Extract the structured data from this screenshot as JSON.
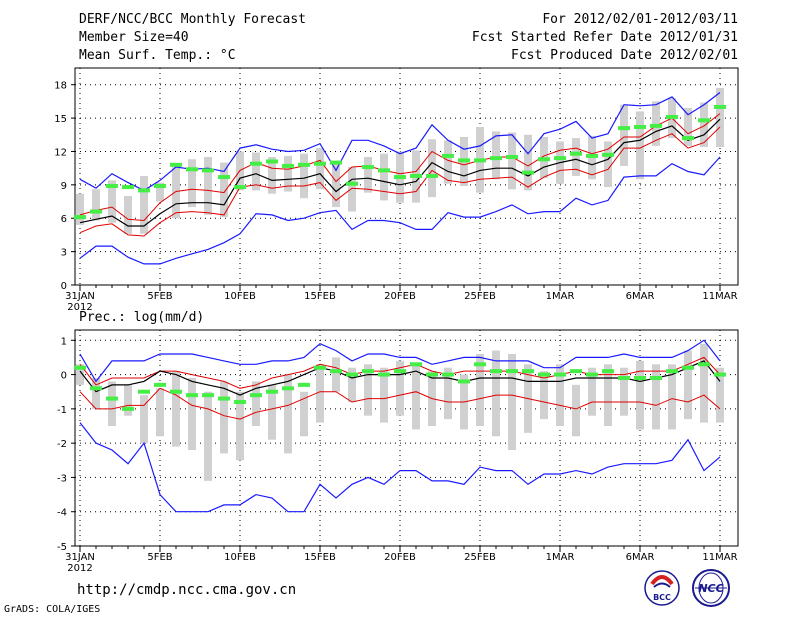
{
  "header": {
    "title": "DERF/NCC/BCC Monthly Forecast",
    "member_size": "Member Size=40",
    "variable": "Mean Surf. Temp.: °C",
    "period": "For 2012/02/01-2012/03/11",
    "started": "Fcst Started Refer Date 2012/01/31",
    "produced": "Fcst Produced Date 2012/02/01"
  },
  "footer": {
    "url": "http://cmdp.ncc.cma.gov.cn",
    "credit": "GrADS: COLA/IGES",
    "logo_bcc": "BCC",
    "logo_ncc": "NCC"
  },
  "colors": {
    "max_min": "#1a1aff",
    "spread": "#e00000",
    "mean": "#000000",
    "box": "#d0d0d0",
    "climo": "#44ee44"
  },
  "chart_data": [
    {
      "type": "line",
      "title": "Mean Surf. Temp.: °C",
      "xlabel": "",
      "ylabel": "°C",
      "ylim": [
        0,
        19.5
      ],
      "yticks": [
        0,
        3,
        6,
        9,
        12,
        15,
        18
      ],
      "x_days": [
        0,
        1,
        2,
        3,
        4,
        5,
        6,
        7,
        8,
        9,
        10,
        11,
        12,
        13,
        14,
        15,
        16,
        17,
        18,
        19,
        20,
        21,
        22,
        23,
        24,
        25,
        26,
        27,
        28,
        29,
        30,
        31,
        32,
        33,
        34,
        35,
        36,
        37,
        38,
        39,
        40
      ],
      "xtick_days": [
        0,
        5,
        10,
        15,
        20,
        25,
        30,
        35,
        40
      ],
      "xtick_labels": [
        "31JAN",
        "5FEB",
        "10FEB",
        "15FEB",
        "20FEB",
        "25FEB",
        "1MAR",
        "6MAR",
        "11MAR"
      ],
      "year_label": "2012",
      "grid": true,
      "series": [
        {
          "name": "ensemble max",
          "values": [
            9.5,
            8.7,
            10,
            9.2,
            8.5,
            9.4,
            10.6,
            10.4,
            10.5,
            10.2,
            12.3,
            12.6,
            12.2,
            12,
            12.1,
            12.7,
            10.3,
            13,
            13,
            12.5,
            11.8,
            12.3,
            14.4,
            13,
            12.2,
            12.5,
            13.4,
            13.5,
            11.8,
            13.6,
            14,
            14.7,
            13.2,
            13.6,
            16.2,
            16.1,
            16.2,
            16.9,
            15.3,
            16.2,
            17.3
          ]
        },
        {
          "name": "upper spread",
          "values": [
            6.3,
            6.7,
            7,
            5.9,
            5.8,
            7.4,
            8.4,
            8.6,
            8.5,
            8.3,
            10.3,
            11,
            10.5,
            10.4,
            10.7,
            11.2,
            9.3,
            10.6,
            10.7,
            10.3,
            10,
            10.2,
            12,
            11.2,
            10.8,
            11.2,
            11.5,
            11.5,
            10.7,
            11.6,
            12.1,
            12.3,
            11.8,
            12.2,
            13.3,
            13.3,
            14.3,
            15,
            13.6,
            14.3,
            15.4
          ]
        },
        {
          "name": "ensemble mean",
          "values": [
            5.6,
            5.9,
            6.2,
            5.3,
            5.3,
            6.4,
            7.3,
            7.4,
            7.4,
            7.2,
            9.6,
            10,
            9.4,
            9.5,
            9.6,
            10,
            8.4,
            9.5,
            9.6,
            9.3,
            9,
            9.3,
            11,
            10.2,
            9.8,
            10.3,
            10.5,
            10.5,
            9.8,
            10.6,
            11,
            11.3,
            10.8,
            11.3,
            12.8,
            13,
            13.8,
            14.3,
            13,
            13.5,
            14.9
          ]
        },
        {
          "name": "lower spread",
          "values": [
            4.7,
            5.3,
            5.5,
            4.5,
            4.4,
            5.6,
            6.5,
            6.6,
            6.5,
            6.3,
            8.8,
            9,
            8.7,
            8.9,
            8.9,
            9.2,
            7.6,
            8.7,
            8.6,
            8.4,
            8.2,
            8.4,
            10.3,
            9.4,
            9.2,
            9.5,
            9.6,
            9.7,
            8.8,
            9.7,
            10.3,
            10.4,
            9.9,
            10.4,
            12.3,
            12.3,
            13,
            13.6,
            12.3,
            12.8,
            14.2
          ]
        },
        {
          "name": "ensemble min",
          "values": [
            2.4,
            3.5,
            3.5,
            2.5,
            1.9,
            1.9,
            2.4,
            2.8,
            3.2,
            3.8,
            4.6,
            6.4,
            6.3,
            5.8,
            6,
            6.5,
            6.7,
            5,
            5.8,
            5.8,
            5.6,
            5,
            5,
            6.5,
            6.1,
            6.1,
            6.6,
            7.2,
            6.4,
            6.6,
            6.6,
            7.8,
            7.2,
            7.6,
            9.7,
            9.8,
            9.8,
            10.9,
            10.2,
            9.9,
            11.5
          ]
        },
        {
          "name": "climatology",
          "values": [
            6.1,
            6.6,
            8.9,
            8.8,
            8.5,
            8.9,
            10.8,
            10.4,
            10.3,
            9.7,
            8.8,
            10.9,
            11.1,
            10.7,
            10.8,
            10.9,
            11,
            9.1,
            10.6,
            10.3,
            9.7,
            9.8,
            9.8,
            11.6,
            11.2,
            11.2,
            11.4,
            11.5,
            10.1,
            11.3,
            11.4,
            11.8,
            11.6,
            11.7,
            14.1,
            14.2,
            14.3,
            15.1,
            13.2,
            14.8,
            16
          ]
        }
      ],
      "boxes": [
        [
          5.4,
          8.2
        ],
        [
          5.8,
          8.6
        ],
        [
          5.6,
          9.4
        ],
        [
          4.6,
          8
        ],
        [
          4.6,
          9.8
        ],
        [
          7.5,
          9.2
        ],
        [
          6,
          10.8
        ],
        [
          7,
          11.3
        ],
        [
          6.3,
          11.5
        ],
        [
          6.1,
          11
        ],
        [
          8.5,
          12
        ],
        [
          8.5,
          11.9
        ],
        [
          8.2,
          11.5
        ],
        [
          8.4,
          11.6
        ],
        [
          7.8,
          11.8
        ],
        [
          8.6,
          12.3
        ],
        [
          7,
          11
        ],
        [
          6.6,
          10.6
        ],
        [
          8.3,
          11.5
        ],
        [
          7.6,
          11.8
        ],
        [
          7.4,
          12
        ],
        [
          7.4,
          12.1
        ],
        [
          7.9,
          13.1
        ],
        [
          9.1,
          13
        ],
        [
          8.9,
          13.3
        ],
        [
          8.3,
          14.2
        ],
        [
          9.5,
          13.8
        ],
        [
          8.6,
          13.7
        ],
        [
          8.5,
          13.5
        ],
        [
          9.6,
          13.3
        ],
        [
          9.1,
          12.9
        ],
        [
          9.8,
          13.2
        ],
        [
          9.5,
          13.4
        ],
        [
          8.8,
          12.9
        ],
        [
          10.7,
          16.2
        ],
        [
          9.5,
          15.6
        ],
        [
          12.5,
          16.5
        ],
        [
          13.2,
          16.8
        ],
        [
          12.5,
          15.9
        ],
        [
          12.4,
          16.4
        ],
        [
          12.4,
          17.7
        ]
      ]
    },
    {
      "type": "line",
      "title": "Prec.: log(mm/d)",
      "xlabel": "",
      "ylabel": "log(mm/d)",
      "ylim": [
        -5,
        1.3
      ],
      "yticks": [
        -5,
        -4,
        -3,
        -2,
        -1,
        0,
        1
      ],
      "x_days": [
        0,
        1,
        2,
        3,
        4,
        5,
        6,
        7,
        8,
        9,
        10,
        11,
        12,
        13,
        14,
        15,
        16,
        17,
        18,
        19,
        20,
        21,
        22,
        23,
        24,
        25,
        26,
        27,
        28,
        29,
        30,
        31,
        32,
        33,
        34,
        35,
        36,
        37,
        38,
        39,
        40
      ],
      "xtick_days": [
        0,
        5,
        10,
        15,
        20,
        25,
        30,
        35,
        40
      ],
      "xtick_labels": [
        "31JAN",
        "5FEB",
        "10FEB",
        "15FEB",
        "20FEB",
        "25FEB",
        "1MAR",
        "6MAR",
        "11MAR"
      ],
      "year_label": "2012",
      "grid": true,
      "series": [
        {
          "name": "ensemble max",
          "values": [
            0.6,
            -0.2,
            0.4,
            0.4,
            0.4,
            0.6,
            0.6,
            0.6,
            0.5,
            0.4,
            0.3,
            0.3,
            0.4,
            0.4,
            0.5,
            0.9,
            0.7,
            0.4,
            0.6,
            0.6,
            0.5,
            0.5,
            0.3,
            0.4,
            0.5,
            0.5,
            0.4,
            0.4,
            0.4,
            0.2,
            0.2,
            0.5,
            0.5,
            0.5,
            0.6,
            0.5,
            0.5,
            0.5,
            0.7,
            1,
            0.4
          ]
        },
        {
          "name": "upper spread",
          "values": [
            0.3,
            -0.3,
            -0.1,
            -0.1,
            -0.1,
            0.1,
            0.1,
            0,
            -0.1,
            -0.2,
            -0.4,
            -0.3,
            -0.1,
            0,
            0.1,
            0.3,
            0.2,
            0,
            0.1,
            0.1,
            0.2,
            0.3,
            0.1,
            0,
            0.1,
            0.1,
            0.1,
            0.1,
            0,
            -0.1,
            0,
            0.1,
            0,
            0,
            0,
            0.1,
            0.1,
            0.1,
            0.3,
            0.5,
            0
          ]
        },
        {
          "name": "ensemble mean",
          "values": [
            0.1,
            -0.5,
            -0.3,
            -0.3,
            -0.2,
            0.1,
            0,
            -0.2,
            -0.3,
            -0.4,
            -0.6,
            -0.4,
            -0.3,
            -0.2,
            0,
            0.2,
            0.1,
            -0.1,
            0,
            0,
            0,
            0.1,
            -0.1,
            -0.1,
            -0.2,
            -0.1,
            -0.1,
            -0.1,
            -0.2,
            -0.2,
            -0.2,
            -0.1,
            -0.1,
            -0.1,
            -0.1,
            -0.2,
            -0.1,
            0,
            0.2,
            0.4,
            -0.2
          ]
        },
        {
          "name": "lower spread",
          "values": [
            -0.5,
            -1,
            -1,
            -0.9,
            -0.9,
            -0.4,
            -0.6,
            -0.9,
            -1,
            -1.2,
            -1.3,
            -1.1,
            -1,
            -0.9,
            -0.7,
            -0.5,
            -0.5,
            -0.8,
            -0.7,
            -0.7,
            -0.6,
            -0.5,
            -0.7,
            -0.8,
            -0.8,
            -0.7,
            -0.6,
            -0.6,
            -0.7,
            -0.8,
            -0.9,
            -1,
            -0.8,
            -0.8,
            -0.8,
            -0.8,
            -0.9,
            -0.7,
            -0.8,
            -0.6,
            -1
          ]
        },
        {
          "name": "ensemble min",
          "values": [
            -1.4,
            -2,
            -2.2,
            -2.6,
            -2,
            -3.5,
            -4,
            -4,
            -4,
            -3.8,
            -3.8,
            -3.5,
            -3.6,
            -4,
            -4,
            -3.2,
            -3.6,
            -3.2,
            -3,
            -3.2,
            -2.8,
            -2.8,
            -3.1,
            -3.1,
            -3.2,
            -2.7,
            -2.8,
            -2.8,
            -3.2,
            -2.9,
            -2.9,
            -2.8,
            -2.9,
            -2.7,
            -2.6,
            -2.6,
            -2.6,
            -2.5,
            -1.9,
            -2.8,
            -2.4
          ]
        },
        {
          "name": "climatology",
          "values": [
            0.2,
            -0.4,
            -0.7,
            -1,
            -0.5,
            -0.3,
            -0.5,
            -0.6,
            -0.6,
            -0.7,
            -0.8,
            -0.6,
            -0.5,
            -0.4,
            -0.3,
            0.2,
            0.1,
            0,
            0.1,
            0,
            0.1,
            0.3,
            0,
            0,
            -0.2,
            0.3,
            0.1,
            0.1,
            0.1,
            0,
            0,
            0.1,
            0,
            0.1,
            -0.1,
            -0.1,
            -0.1,
            0.1,
            0.2,
            0.3,
            0
          ]
        }
      ],
      "boxes": [
        [
          -0.3,
          0.3
        ],
        [
          -1,
          -0.1
        ],
        [
          -1.5,
          -0.2
        ],
        [
          -1.2,
          -0.3
        ],
        [
          -2,
          -0.6
        ],
        [
          -1.8,
          -0.4
        ],
        [
          -2.1,
          0.1
        ],
        [
          -2.2,
          -0.1
        ],
        [
          -3.1,
          -0.5
        ],
        [
          -2.3,
          -0.2
        ],
        [
          -2.5,
          -0.5
        ],
        [
          -1.5,
          -0.2
        ],
        [
          -1.9,
          -0.3
        ],
        [
          -2.3,
          0
        ],
        [
          -1.8,
          -0.5
        ],
        [
          -1.4,
          0.3
        ],
        [
          -0.5,
          0.5
        ],
        [
          -0.8,
          0.2
        ],
        [
          -1.2,
          0.3
        ],
        [
          -1.4,
          0.2
        ],
        [
          -1.2,
          0.4
        ],
        [
          -1.6,
          0.3
        ],
        [
          -1.5,
          0.1
        ],
        [
          -1.3,
          0.2
        ],
        [
          -1.6,
          0
        ],
        [
          -1.5,
          0.6
        ],
        [
          -1.8,
          0.7
        ],
        [
          -2.2,
          0.6
        ],
        [
          -1.7,
          0.3
        ],
        [
          -1.3,
          0.1
        ],
        [
          -1.5,
          0.3
        ],
        [
          -1.8,
          -0.3
        ],
        [
          -1.2,
          0.2
        ],
        [
          -1.5,
          0.3
        ],
        [
          -1.2,
          0.2
        ],
        [
          -1.6,
          0.4
        ],
        [
          -1.6,
          0.3
        ],
        [
          -1.6,
          0.3
        ],
        [
          -1.3,
          0.7
        ],
        [
          -1.4,
          0.9
        ],
        [
          -1.4,
          0.2
        ]
      ]
    }
  ]
}
